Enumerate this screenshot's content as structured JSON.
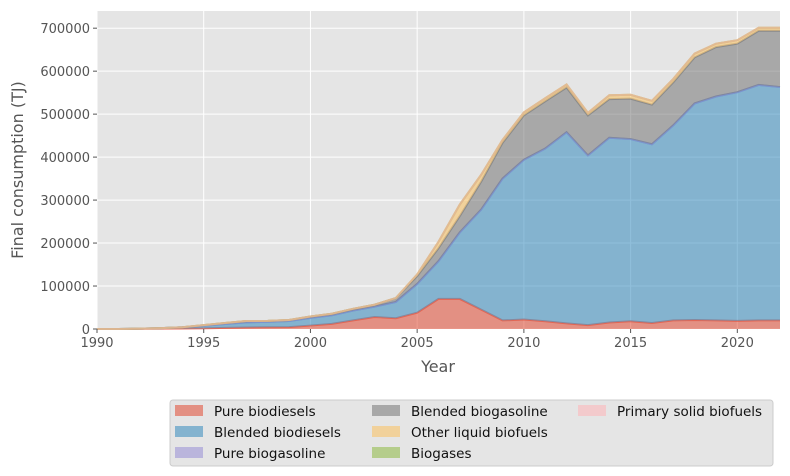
{
  "chart_data": {
    "type": "area",
    "stacked": true,
    "xlabel": "Year",
    "ylabel": "Final consumption (TJ)",
    "xlim": [
      1990,
      2022
    ],
    "ylim": [
      0,
      740000
    ],
    "x_ticks": [
      1990,
      1995,
      2000,
      2005,
      2010,
      2015,
      2020
    ],
    "y_ticks": [
      0,
      100000,
      200000,
      300000,
      400000,
      500000,
      600000,
      700000
    ],
    "grid": true,
    "legend_position": "bottom",
    "x": [
      1990,
      1991,
      1992,
      1993,
      1994,
      1995,
      1996,
      1997,
      1998,
      1999,
      2000,
      2001,
      2002,
      2003,
      2004,
      2005,
      2006,
      2007,
      2008,
      2009,
      2010,
      2011,
      2012,
      2013,
      2014,
      2015,
      2016,
      2017,
      2018,
      2019,
      2020,
      2021,
      2022
    ],
    "series": [
      {
        "name": "Pure biodiesels",
        "color": "#E24A33",
        "values": [
          0,
          0,
          200,
          600,
          1000,
          1500,
          2500,
          3500,
          4000,
          4500,
          8000,
          12000,
          20000,
          28000,
          25000,
          38000,
          70000,
          70000,
          45000,
          20000,
          22000,
          18000,
          13000,
          9000,
          15000,
          18000,
          14000,
          20000,
          21000,
          20000,
          19000,
          20000,
          20000
        ]
      },
      {
        "name": "Blended biodiesels",
        "color": "#348ABD",
        "values": [
          0,
          0,
          600,
          1500,
          3000,
          6000,
          9000,
          12000,
          12500,
          14000,
          18000,
          20000,
          23000,
          24000,
          38000,
          67000,
          88000,
          155000,
          233000,
          330000,
          372000,
          402000,
          445000,
          395000,
          430000,
          424000,
          416000,
          454000,
          504000,
          521000,
          532000,
          548000,
          543000
        ]
      },
      {
        "name": "Pure biogasoline",
        "color": "#988ED5",
        "values": [
          0,
          0,
          0,
          0,
          0,
          0,
          0,
          0,
          0,
          0,
          0,
          0,
          0,
          0,
          0,
          0,
          0,
          0,
          0,
          0,
          0,
          0,
          0,
          0,
          0,
          0,
          0,
          0,
          0,
          0,
          0,
          0,
          0
        ]
      },
      {
        "name": "Blended biogasoline",
        "color": "#777777",
        "values": [
          0,
          0,
          0,
          0,
          0,
          1500,
          2500,
          3000,
          2500,
          2500,
          3000,
          3500,
          4000,
          4500,
          9000,
          18000,
          30000,
          38000,
          65000,
          83000,
          103000,
          110000,
          104000,
          93000,
          90000,
          94000,
          92000,
          100000,
          107000,
          115000,
          113000,
          126000,
          131000
        ]
      },
      {
        "name": "Other liquid biofuels",
        "color": "#FBC15E",
        "values": [
          0,
          0,
          0,
          0,
          0,
          0,
          0,
          0,
          0,
          0,
          0,
          0,
          0,
          0,
          0,
          4000,
          15000,
          27000,
          16000,
          7000,
          7000,
          7000,
          7000,
          6000,
          9000,
          9000,
          9000,
          8000,
          9000,
          8000,
          8000,
          7000,
          7000
        ]
      },
      {
        "name": "Biogases",
        "color": "#8EBA42",
        "values": [
          0,
          0,
          0,
          0,
          0,
          0,
          0,
          0,
          0,
          0,
          0,
          0,
          0,
          0,
          0,
          0,
          0,
          0,
          0,
          0,
          0,
          0,
          0,
          0,
          0,
          0,
          0,
          0,
          0,
          0,
          0,
          0,
          0
        ]
      },
      {
        "name": "Primary solid biofuels",
        "color": "#FFB5B8",
        "values": [
          0,
          0,
          0,
          0,
          0,
          0,
          0,
          0,
          0,
          0,
          0,
          0,
          0,
          0,
          0,
          0,
          0,
          0,
          0,
          0,
          0,
          0,
          0,
          0,
          0,
          0,
          0,
          0,
          0,
          0,
          0,
          0,
          0
        ]
      }
    ]
  }
}
